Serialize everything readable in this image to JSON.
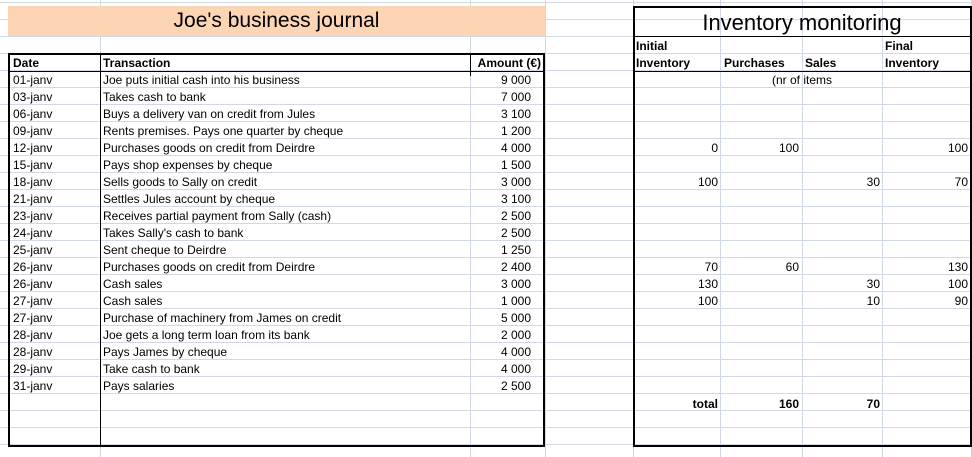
{
  "journal": {
    "title": "Joe's business journal",
    "headers": {
      "date": "Date",
      "transaction": "Transaction",
      "amount": "Amount (€)"
    },
    "rows": [
      {
        "date": "01-janv",
        "transaction": "Joe puts initial cash into his business",
        "amount": "9 000"
      },
      {
        "date": "03-janv",
        "transaction": "Takes cash to bank",
        "amount": "7 000"
      },
      {
        "date": "06-janv",
        "transaction": "Buys a delivery van on credit from Jules",
        "amount": "3 100"
      },
      {
        "date": "09-janv",
        "transaction": "Rents premises. Pays one quarter by cheque",
        "amount": "1 200"
      },
      {
        "date": "12-janv",
        "transaction": "Purchases goods on credit from Deirdre",
        "amount": "4 000"
      },
      {
        "date": "15-janv",
        "transaction": "Pays shop expenses by cheque",
        "amount": "1 500"
      },
      {
        "date": "18-janv",
        "transaction": "Sells goods to Sally on credit",
        "amount": "3 000"
      },
      {
        "date": "21-janv",
        "transaction": "Settles Jules account by cheque",
        "amount": "3 100"
      },
      {
        "date": "23-janv",
        "transaction": "Receives partial payment from Sally (cash)",
        "amount": "2 500"
      },
      {
        "date": "24-janv",
        "transaction": "Takes Sally's cash to bank",
        "amount": "2 500"
      },
      {
        "date": "25-janv",
        "transaction": "Sent cheque to Deirdre",
        "amount": "1 250"
      },
      {
        "date": "26-janv",
        "transaction": "Purchases goods on credit from Deirdre",
        "amount": "2 400"
      },
      {
        "date": "26-janv",
        "transaction": "Cash sales",
        "amount": "3 000"
      },
      {
        "date": "27-janv",
        "transaction": "Cash sales",
        "amount": "1 000"
      },
      {
        "date": "27-janv",
        "transaction": "Purchase of machinery from James on credit",
        "amount": "5 000"
      },
      {
        "date": "28-janv",
        "transaction": "Joe gets a long term loan from its bank",
        "amount": "2 000"
      },
      {
        "date": "28-janv",
        "transaction": "Pays James by cheque",
        "amount": "4 000"
      },
      {
        "date": "29-janv",
        "transaction": "Take cash to bank",
        "amount": "4 000"
      },
      {
        "date": "31-janv",
        "transaction": "Pays salaries",
        "amount": "2 500"
      }
    ]
  },
  "inventory": {
    "title": "Inventory monitoring",
    "header_top": {
      "initial": "Initial",
      "final": "Final"
    },
    "header_bottom": {
      "initial": "Inventory",
      "purchases": "Purchases",
      "sales": "Sales",
      "final": "Inventory"
    },
    "unit_note": "(nr of items",
    "rows": [
      {
        "initial": "",
        "purchases": "",
        "sales": "",
        "final": ""
      },
      {
        "initial": "",
        "purchases": "",
        "sales": "",
        "final": ""
      },
      {
        "initial": "",
        "purchases": "",
        "sales": "",
        "final": ""
      },
      {
        "initial": "",
        "purchases": "",
        "sales": "",
        "final": ""
      },
      {
        "initial": "0",
        "purchases": "100",
        "sales": "",
        "final": "100"
      },
      {
        "initial": "",
        "purchases": "",
        "sales": "",
        "final": ""
      },
      {
        "initial": "100",
        "purchases": "",
        "sales": "30",
        "final": "70"
      },
      {
        "initial": "",
        "purchases": "",
        "sales": "",
        "final": ""
      },
      {
        "initial": "",
        "purchases": "",
        "sales": "",
        "final": ""
      },
      {
        "initial": "",
        "purchases": "",
        "sales": "",
        "final": ""
      },
      {
        "initial": "",
        "purchases": "",
        "sales": "",
        "final": ""
      },
      {
        "initial": "70",
        "purchases": "60",
        "sales": "",
        "final": "130"
      },
      {
        "initial": "130",
        "purchases": "",
        "sales": "30",
        "final": "100"
      },
      {
        "initial": "100",
        "purchases": "",
        "sales": "10",
        "final": "90"
      },
      {
        "initial": "",
        "purchases": "",
        "sales": "",
        "final": ""
      },
      {
        "initial": "",
        "purchases": "",
        "sales": "",
        "final": ""
      },
      {
        "initial": "",
        "purchases": "",
        "sales": "",
        "final": ""
      },
      {
        "initial": "",
        "purchases": "",
        "sales": "",
        "final": ""
      },
      {
        "initial": "",
        "purchases": "",
        "sales": "",
        "final": ""
      }
    ],
    "total": {
      "label": "total",
      "purchases": "160",
      "sales": "70"
    }
  }
}
